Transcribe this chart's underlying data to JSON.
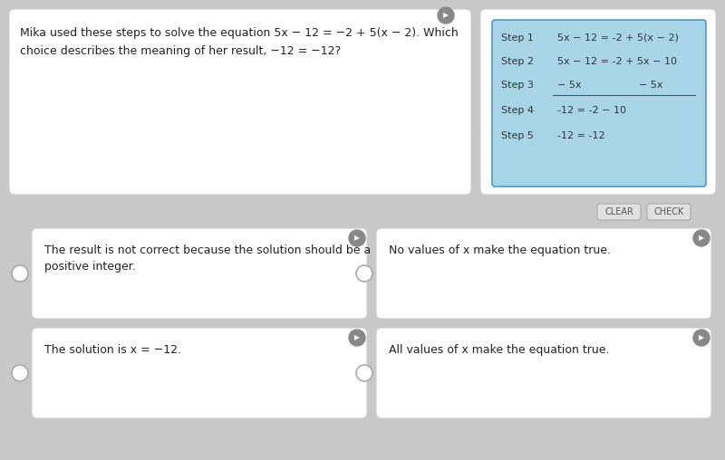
{
  "bg_color": "#c8c8c8",
  "white": "#ffffff",
  "table_bg": "#a8d4e8",
  "table_border": "#5599bb",
  "btn_color": "#e0e0e0",
  "btn_border": "#aaaaaa",
  "text_color": "#222222",
  "radio_color": "#aaaaaa",
  "speaker_bg": "#888888",
  "q_line1": "Mika used these steps to solve the equation 5x − 12 = −2 + 5(x − 2). Which",
  "q_line2": "choice describes the meaning of her result, −12 = −12?",
  "step_labels": [
    "Step 1",
    "Step 2",
    "Step 3",
    "Step 4",
    "Step 5"
  ],
  "step_eq1": "5x − 12 = -2 + 5(x − 2)",
  "step_eq2": "5x − 12 = -2 + 5x − 10",
  "step_eq3_left": "− 5x",
  "step_eq3_right": "− 5x",
  "step_eq4": "-12 = -2 − 10",
  "step_eq5": "-12 = -12",
  "btn_clear": "CLEAR",
  "btn_check": "CHECK",
  "ans1_line1": "The result is not correct because the solution should be a",
  "ans1_line2": "positive integer.",
  "ans2": "No values of x make the equation true.",
  "ans3": "The solution is x = −12.",
  "ans4": "All values of x make the equation true.",
  "figw": 8.0,
  "figh": 5.08,
  "dpi": 100
}
